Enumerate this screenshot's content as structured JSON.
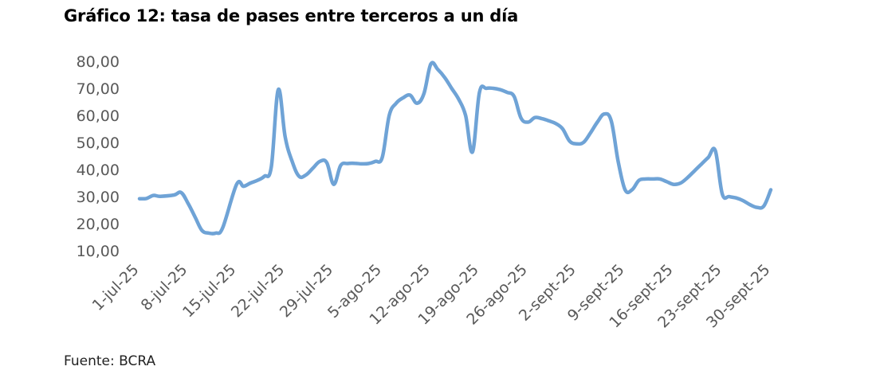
{
  "title": "Gráfico 12: tasa de pases entre terceros a un día",
  "source": "Fuente: BCRA",
  "chart_data": {
    "type": "line",
    "title": "Gráfico 12: tasa de pases entre terceros a un día",
    "xlabel": "",
    "ylabel": "",
    "ylim": [
      10,
      80
    ],
    "yticks": [
      "10,00",
      "20,00",
      "30,00",
      "40,00",
      "50,00",
      "60,00",
      "70,00",
      "80,00"
    ],
    "xticks": [
      "1-jul-25",
      "8-jul-25",
      "15-jul-25",
      "22-jul-25",
      "29-jul-25",
      "5-ago-25",
      "12-ago-25",
      "19-ago-25",
      "26-ago-25",
      "2-sept-25",
      "9-sept-25",
      "16-sept-25",
      "23-sept-25",
      "30-sept-25"
    ],
    "grid": false,
    "legend": "none",
    "line_color": "#6fa3d6",
    "series": [
      {
        "x": [
          0,
          1,
          2,
          3,
          5,
          6,
          7,
          8,
          9,
          10,
          11,
          12,
          14,
          15,
          16,
          17,
          18,
          19,
          20,
          21,
          22,
          23,
          24,
          25,
          26,
          27,
          28,
          29,
          30,
          31,
          32,
          33,
          34,
          35,
          36,
          37,
          38,
          39,
          40,
          41,
          42,
          43,
          44,
          45,
          46,
          47,
          48,
          49,
          50,
          51,
          52,
          53,
          54,
          55,
          56,
          57,
          58,
          59,
          60,
          61,
          62,
          63,
          64,
          65,
          66,
          67,
          68,
          69,
          70,
          71,
          72,
          73,
          74,
          75,
          76,
          77,
          78,
          79,
          80,
          81,
          82,
          83,
          84,
          85,
          86,
          87,
          88,
          89,
          90,
          91
        ],
        "values": [
          29.2,
          29.3,
          30.4,
          30.1,
          30.6,
          31.5,
          27.5,
          22.5,
          17.5,
          16.5,
          16.5,
          18.5,
          34.5,
          33.8,
          35.0,
          36.0,
          37.5,
          41.0,
          69.5,
          52.0,
          43.0,
          37.5,
          38.0,
          40.5,
          43.0,
          42.5,
          34.5,
          41.5,
          42.2,
          42.3,
          42.1,
          42.2,
          43.0,
          44.5,
          60.0,
          64.5,
          66.5,
          67.5,
          64.5,
          68.0,
          79.0,
          77.0,
          74.0,
          70.0,
          66.0,
          60.0,
          46.5,
          68.5,
          70.0,
          70.0,
          69.5,
          68.5,
          67.0,
          59.0,
          57.5,
          59.2,
          58.8,
          58.0,
          57.0,
          55.0,
          50.5,
          49.5,
          50.0,
          53.5,
          57.5,
          60.5,
          58.0,
          43.0,
          32.5,
          32.5,
          36.0,
          36.5,
          36.5,
          36.5,
          35.5,
          34.5,
          35.0,
          37.0,
          39.5,
          42.0,
          44.5,
          47.0,
          31.0,
          30.0,
          29.5,
          28.5,
          27.0,
          26.0,
          26.5,
          32.5
        ]
      }
    ]
  }
}
